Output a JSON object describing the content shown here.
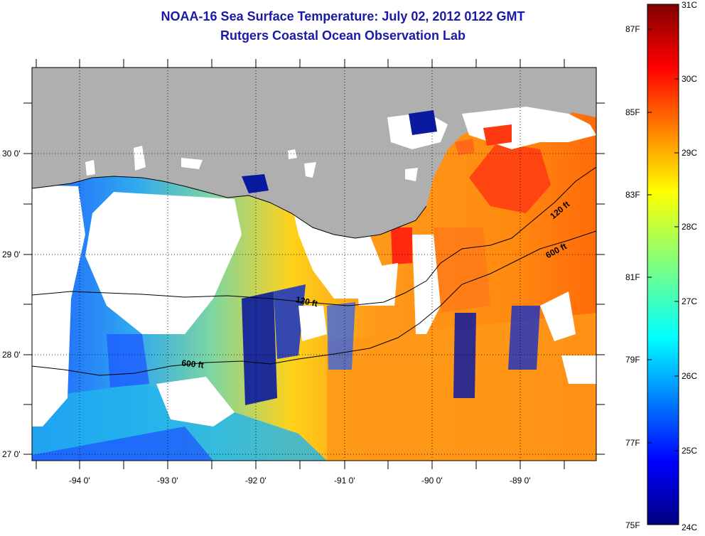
{
  "title_line1": "NOAA-16 Sea Surface Temperature:  July 02, 2012 0122 GMT",
  "title_line2": "Rutgers Coastal Ocean Observation Lab",
  "map": {
    "lon_labels": [
      "-94 0'",
      "-93 0'",
      "-92 0'",
      "-91 0'",
      "-90 0'",
      "-89 0'"
    ],
    "lat_labels": [
      "30 0'",
      "29 0'",
      "28 0'",
      "27 0'"
    ],
    "isobath_labels": [
      "120 ft",
      "600 ft",
      "120 ft",
      "600 ft"
    ],
    "colors": {
      "land": "#afafaf",
      "clouds": "#ffffff",
      "contour": "#000000"
    }
  },
  "colorbar": {
    "celsius_labels": [
      "31C",
      "30C",
      "29C",
      "28C",
      "27C",
      "26C",
      "25C",
      "24C"
    ],
    "fahrenheit_labels": [
      "87F",
      "85F",
      "83F",
      "81F",
      "79F",
      "77F",
      "75F"
    ],
    "range_c": [
      24,
      31
    ],
    "colormap": "jet"
  }
}
